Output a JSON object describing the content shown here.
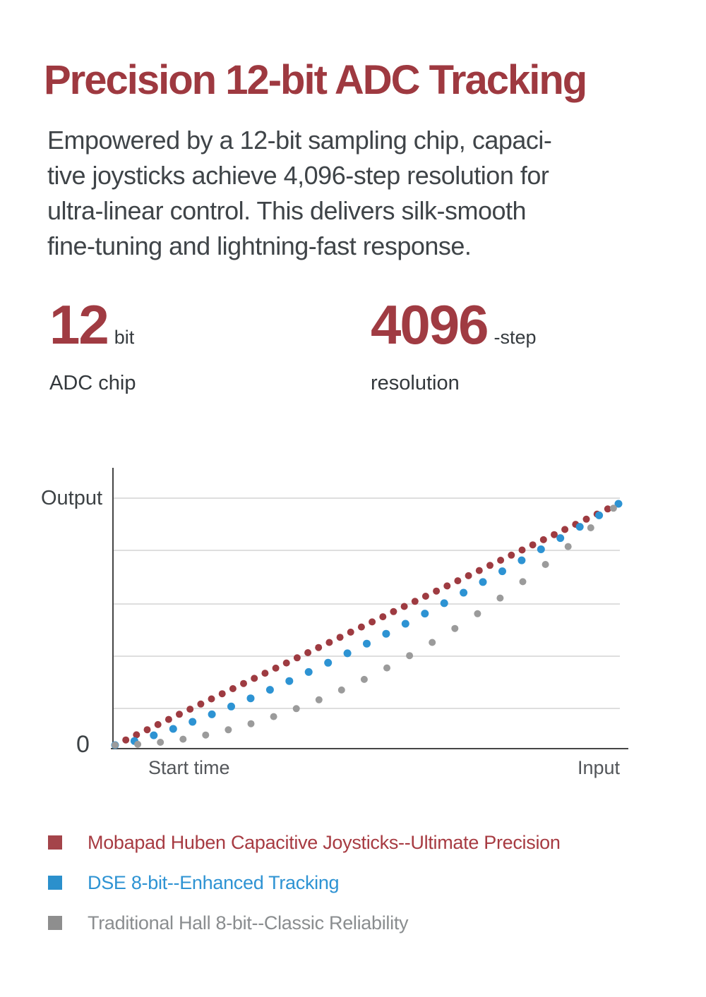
{
  "header": {
    "title": "Precision 12-bit ADC Tracking"
  },
  "intro": {
    "lines": [
      "Empowered by a 12-bit sampling chip, capaci-",
      "tive joysticks achieve 4,096-step resolution for",
      "ultra-linear control. This delivers silk-smooth",
      "fine-tuning and lightning-fast response."
    ]
  },
  "stats": [
    {
      "value": "12",
      "suffix": "bit",
      "label": "ADC chip"
    },
    {
      "value": "4096",
      "suffix": "-step",
      "label": "resolution"
    }
  ],
  "chart_data": {
    "type": "scatter",
    "title": "",
    "ylabel": "Output",
    "origin_label": "0",
    "xlabel_left": "Start time",
    "xlabel_right": "Input",
    "x_range_normalized": [
      0,
      1
    ],
    "y_range_normalized": [
      0,
      1
    ],
    "grid": "horizontal gridlines only, 5 lines",
    "legend_position": "below chart",
    "description": "Three dotted response curves from origin (0) rising to full output at max input; all converge at top-right.",
    "series": [
      {
        "name": "Mobapad Huben Capacitive Joysticks--Ultimate Precision",
        "color": "#9e3b41",
        "dot_count": 48,
        "curve": "y = x^1.00 (linear, densest dots)",
        "power": 1.0,
        "t_max": 1.0,
        "dot_radius": 5
      },
      {
        "name": "DSE 8-bit--Enhanced Tracking",
        "color": "#2d93d3",
        "dot_count": 27,
        "curve": "y = x^1.25 (lags slightly, converges at end)",
        "power": 1.25,
        "t_max": 1.0,
        "dot_radius": 5.5
      },
      {
        "name": "Traditional Hall 8-bit--Classic Reliability",
        "color": "#9b9b9b",
        "dot_count": 23,
        "curve": "y = x^1.85 (largest lag, sparsest dots)",
        "power": 1.85,
        "t_max": 0.99,
        "dot_radius": 5
      }
    ]
  },
  "legend": {
    "items": [
      {
        "label": "Mobapad Huben Capacitive Joysticks--Ultimate Precision",
        "swatch_color": "#a4444a",
        "text_color": "#a73b42"
      },
      {
        "label": "DSE 8-bit--Enhanced Tracking",
        "swatch_color": "#2b90cc",
        "text_color": "#2e93d3"
      },
      {
        "label": "Traditional Hall 8-bit--Classic Reliability",
        "swatch_color": "#8e8e8e",
        "text_color": "#8a8d8f"
      }
    ]
  },
  "colors": {
    "heading_red": "#9e3940",
    "stat_red": "#a03b42",
    "body_text": "#3f4448",
    "axis_line": "#454545",
    "gridline": "#d4d4d4",
    "background": "#ffffff"
  }
}
